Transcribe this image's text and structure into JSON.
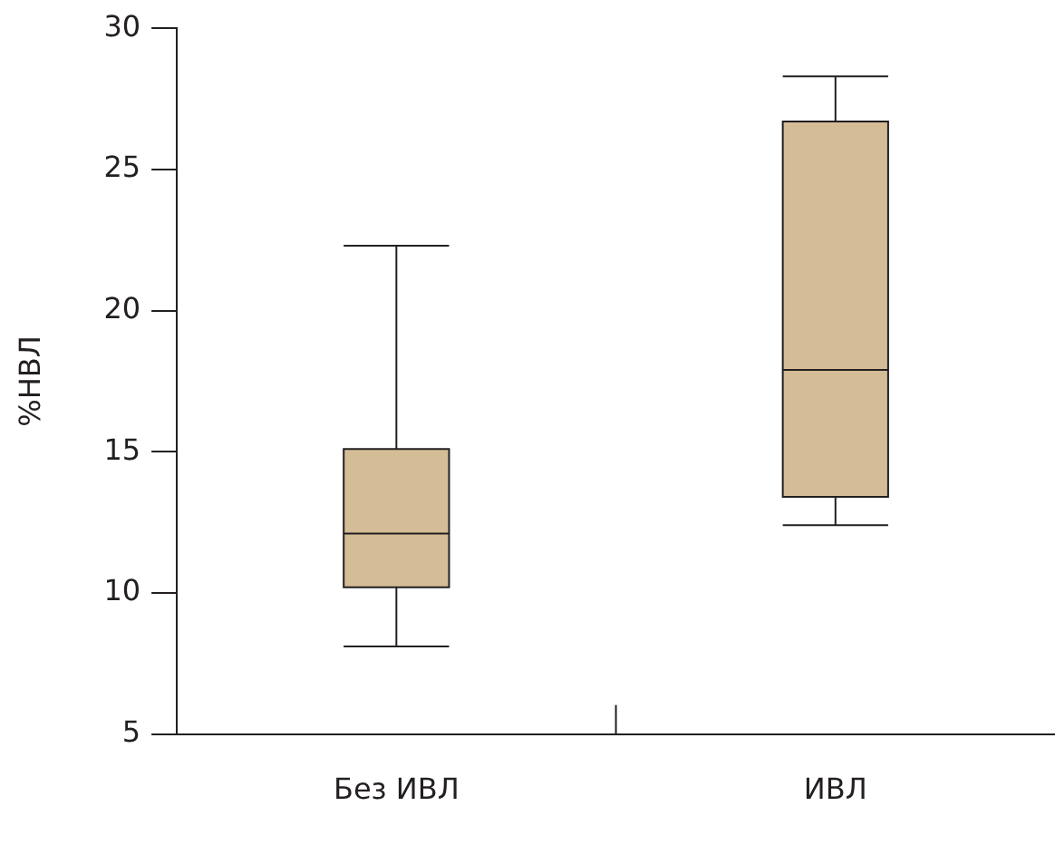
{
  "chart_data": {
    "type": "box",
    "ylabel": "%НВЛ",
    "categories": [
      "Без ИВЛ",
      "ИВЛ"
    ],
    "boxes": [
      {
        "low": 8.1,
        "q1": 10.2,
        "median": 12.1,
        "q3": 15.1,
        "high": 22.3
      },
      {
        "low": 12.4,
        "q1": 13.4,
        "median": 17.9,
        "q3": 26.7,
        "high": 28.3
      }
    ],
    "color": "#d4bc96",
    "ylim": [
      5,
      30
    ],
    "yticks": [
      5,
      10,
      15,
      20,
      25,
      30
    ],
    "grid": false,
    "legend": false
  }
}
